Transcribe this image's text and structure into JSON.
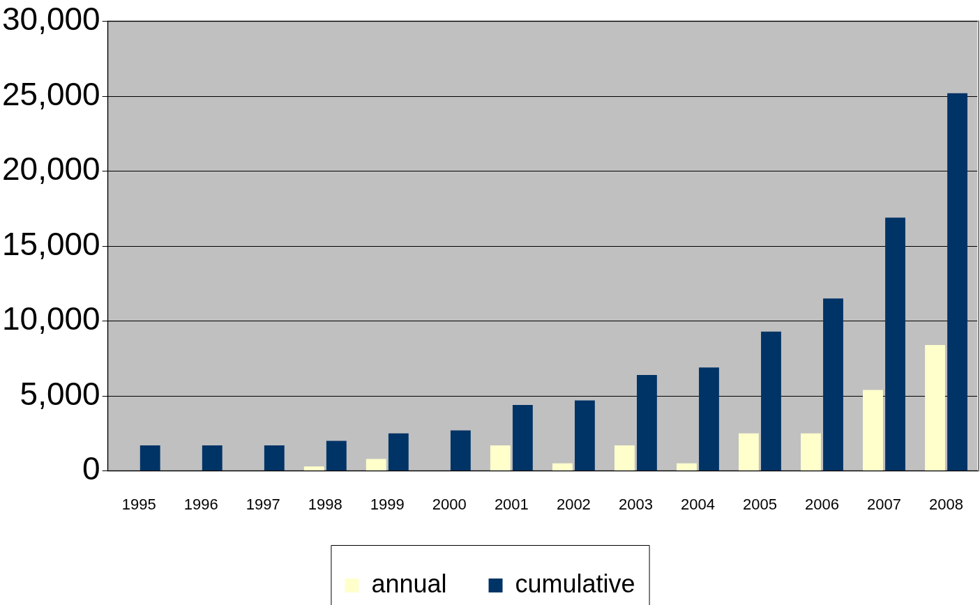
{
  "chart_data": {
    "type": "bar",
    "categories": [
      "1995",
      "1996",
      "1997",
      "1998",
      "1999",
      "2000",
      "2001",
      "2002",
      "2003",
      "2004",
      "2005",
      "2006",
      "2007",
      "2008"
    ],
    "series": [
      {
        "name": "annual",
        "color": "#ffffcc",
        "values": [
          0,
          0,
          0,
          300,
          800,
          0,
          1700,
          500,
          1700,
          500,
          2500,
          2500,
          5400,
          8400
        ]
      },
      {
        "name": "cumulative",
        "color": "#003366",
        "values": [
          1700,
          1700,
          1700,
          2000,
          2500,
          2700,
          4400,
          4700,
          6400,
          6900,
          9300,
          11500,
          16900,
          25200
        ]
      }
    ],
    "ylim": [
      0,
      30000
    ],
    "yticks": [
      0,
      {
        "value": 5000,
        "label": "5,000"
      },
      {
        "value": 10000,
        "label": "10,000"
      },
      {
        "value": 15000,
        "label": "15,000"
      },
      {
        "value": 20000,
        "label": "20,000"
      },
      {
        "value": 25000,
        "label": "25,000"
      },
      {
        "value": 30000,
        "label": "30,000"
      }
    ],
    "grid": "y",
    "legend": "bottom"
  }
}
